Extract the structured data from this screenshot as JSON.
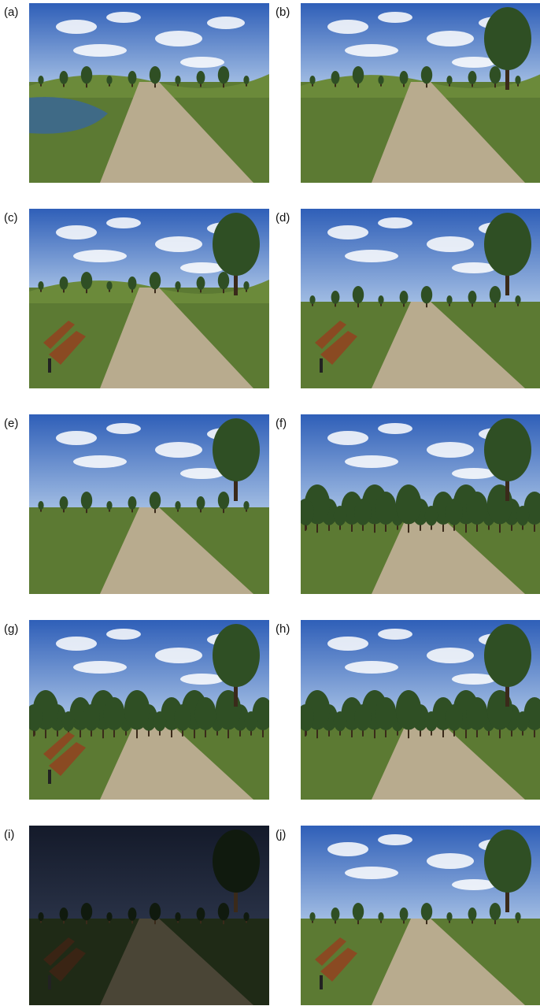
{
  "panels": [
    {
      "label": "(a)",
      "scene": "rolling-hills-pond",
      "trees": "sparse",
      "bench": false,
      "lighting": "day"
    },
    {
      "label": "(b)",
      "scene": "rolling-hills-large-tree",
      "trees": "sparse",
      "bench": false,
      "lighting": "day"
    },
    {
      "label": "(c)",
      "scene": "rolling-hills-large-tree",
      "trees": "sparse",
      "bench": true,
      "lighting": "day"
    },
    {
      "label": "(d)",
      "scene": "flat-park",
      "trees": "sparse",
      "bench": true,
      "lighting": "day"
    },
    {
      "label": "(e)",
      "scene": "flat-park",
      "trees": "sparse",
      "bench": false,
      "lighting": "day"
    },
    {
      "label": "(f)",
      "scene": "flat-park",
      "trees": "dense",
      "bench": false,
      "lighting": "day"
    },
    {
      "label": "(g)",
      "scene": "flat-park",
      "trees": "dense",
      "bench": true,
      "lighting": "day"
    },
    {
      "label": "(h)",
      "scene": "flat-park",
      "trees": "dense",
      "bench": false,
      "lighting": "day"
    },
    {
      "label": "(i)",
      "scene": "flat-park",
      "trees": "sparse",
      "bench": true,
      "lighting": "night"
    },
    {
      "label": "(j)",
      "scene": "flat-park",
      "trees": "sparse",
      "bench": true,
      "lighting": "day"
    }
  ],
  "colors": {
    "sky_top": "#2f5fb8",
    "sky_bottom": "#a9c3e6",
    "night_sky_top": "#141a2a",
    "night_sky_bottom": "#2a3348",
    "grass": "#5c7a33",
    "path": "#b8ab8e",
    "tree": "#2f4f24",
    "bench": "#8a4a22",
    "water": "#3f6a86"
  }
}
